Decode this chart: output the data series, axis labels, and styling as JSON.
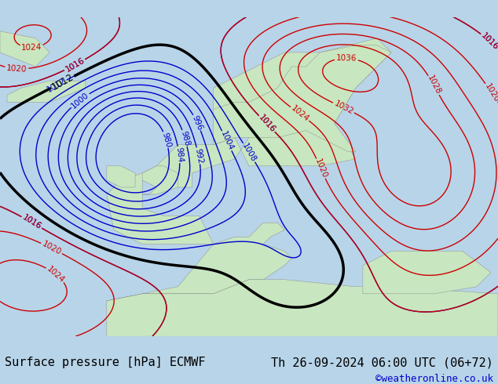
{
  "bg_color": "#d0e8f0",
  "land_color": "#c8e6c0",
  "title_left": "Surface pressure [hPa] ECMWF",
  "title_right": "Th 26-09-2024 06:00 UTC (06+72)",
  "copyright": "©weatheronline.co.uk",
  "title_fontsize": 11,
  "copyright_color": "#0000cc",
  "footer_bg": "#ffffff",
  "map_bg": "#b8d4e8",
  "contour_blue": "#0000cc",
  "contour_red": "#cc0000",
  "contour_black": "#000000",
  "label_fontsize": 7.5
}
